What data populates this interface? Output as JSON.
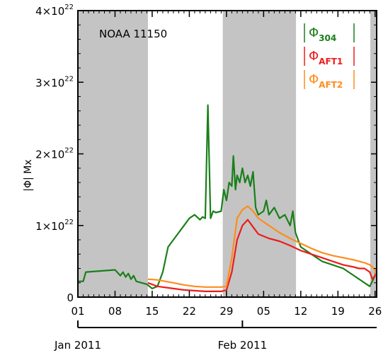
{
  "chart_data": {
    "type": "line",
    "annotation": "NOAA  11150",
    "ylabel": "|Φ| Mx",
    "x_unit": "days from 2011-01-01",
    "xlim": [
      0,
      56.3
    ],
    "ylim": [
      0,
      4e+22
    ],
    "y_ticks": [
      {
        "value": 0,
        "mantissa": "0",
        "exponent": ""
      },
      {
        "value": 1e+22,
        "mantissa": "1×10",
        "exponent": "22"
      },
      {
        "value": 2e+22,
        "mantissa": "2×10",
        "exponent": "22"
      },
      {
        "value": 3e+22,
        "mantissa": "3×10",
        "exponent": "22"
      },
      {
        "value": 4e+22,
        "mantissa": "4×10",
        "exponent": "22"
      }
    ],
    "x_ticks": [
      {
        "value": 0,
        "label": "01"
      },
      {
        "value": 7,
        "label": "08"
      },
      {
        "value": 14,
        "label": "15"
      },
      {
        "value": 21,
        "label": "22"
      },
      {
        "value": 28,
        "label": "29"
      },
      {
        "value": 35,
        "label": "05"
      },
      {
        "value": 42,
        "label": "12"
      },
      {
        "value": 49,
        "label": "19"
      },
      {
        "value": 56,
        "label": "26"
      }
    ],
    "month_labels": [
      {
        "value": 0,
        "label": "Jan 2011"
      },
      {
        "value": 31,
        "label": "Feb 2011"
      }
    ],
    "shaded_intervals": [
      [
        0,
        13.2
      ],
      [
        27.3,
        41.1
      ],
      [
        55.1,
        56.3
      ]
    ],
    "legend_position": "top-right",
    "series": [
      {
        "key": "phi304",
        "base": "Φ",
        "sub": "304",
        "color": "#1a7f1a",
        "points": [
          [
            0,
            2.2e+21
          ],
          [
            1,
            2.2e+21
          ],
          [
            1.5,
            3.5e+21
          ],
          [
            7,
            3.8e+21
          ],
          [
            8,
            3e+21
          ],
          [
            8.5,
            3.5e+21
          ],
          [
            9,
            2.8e+21
          ],
          [
            9.5,
            3.3e+21
          ],
          [
            10,
            2.5e+21
          ],
          [
            10.5,
            3e+21
          ],
          [
            11,
            2.2e+21
          ],
          [
            12,
            2e+21
          ],
          [
            13,
            1.8e+21
          ],
          [
            14,
            1.2e+21
          ],
          [
            15,
            1.5e+21
          ],
          [
            16,
            3.5e+21
          ],
          [
            17,
            7e+21
          ],
          [
            18,
            8e+21
          ],
          [
            19,
            9e+21
          ],
          [
            20,
            1e+22
          ],
          [
            21,
            1.1e+22
          ],
          [
            22,
            1.15e+22
          ],
          [
            23,
            1.08e+22
          ],
          [
            23.5,
            1.12e+22
          ],
          [
            24,
            1.1e+22
          ],
          [
            24.5,
            2.68e+22
          ],
          [
            25,
            1.1e+22
          ],
          [
            25.5,
            1.2e+22
          ],
          [
            26,
            1.18e+22
          ],
          [
            27,
            1.2e+22
          ],
          [
            27.5,
            1.5e+22
          ],
          [
            28,
            1.35e+22
          ],
          [
            28.5,
            1.6e+22
          ],
          [
            29,
            1.55e+22
          ],
          [
            29.3,
            1.97e+22
          ],
          [
            29.7,
            1.5e+22
          ],
          [
            30,
            1.7e+22
          ],
          [
            30.5,
            1.6e+22
          ],
          [
            31,
            1.8e+22
          ],
          [
            31.5,
            1.6e+22
          ],
          [
            32,
            1.7e+22
          ],
          [
            32.5,
            1.55e+22
          ],
          [
            33,
            1.75e+22
          ],
          [
            33.5,
            1.25e+22
          ],
          [
            34,
            1.15e+22
          ],
          [
            35,
            1.2e+22
          ],
          [
            35.5,
            1.35e+22
          ],
          [
            36,
            1.15e+22
          ],
          [
            37,
            1.25e+22
          ],
          [
            38,
            1.1e+22
          ],
          [
            39,
            1.15e+22
          ],
          [
            40,
            1e+22
          ],
          [
            40.5,
            1.2e+22
          ],
          [
            41,
            9e+21
          ],
          [
            42,
            7e+21
          ],
          [
            44,
            6e+21
          ],
          [
            46,
            5e+21
          ],
          [
            48,
            4.5e+21
          ],
          [
            50,
            4e+21
          ],
          [
            52,
            3e+21
          ],
          [
            53,
            2.5e+21
          ],
          [
            54,
            2e+21
          ],
          [
            55,
            1.5e+21
          ],
          [
            56,
            3e+21
          ],
          [
            56.3,
            4e+21
          ]
        ]
      },
      {
        "key": "phiaft1",
        "base": "Φ",
        "sub": "AFT1",
        "color": "#ee1c1c",
        "points": [
          [
            13.2,
            2e+21
          ],
          [
            15,
            1.5e+21
          ],
          [
            18,
            1.2e+21
          ],
          [
            20,
            1e+21
          ],
          [
            22,
            9e+20
          ],
          [
            24,
            8e+20
          ],
          [
            27,
            8e+20
          ],
          [
            28,
            1e+21
          ],
          [
            29,
            3.5e+21
          ],
          [
            30,
            8e+21
          ],
          [
            31,
            1e+22
          ],
          [
            32,
            1.08e+22
          ],
          [
            33,
            9.8e+21
          ],
          [
            34,
            8.8e+21
          ],
          [
            36,
            8.2e+21
          ],
          [
            38,
            7.8e+21
          ],
          [
            40,
            7.2e+21
          ],
          [
            42,
            6.5e+21
          ],
          [
            44,
            6e+21
          ],
          [
            46,
            5.5e+21
          ],
          [
            48,
            5e+21
          ],
          [
            50,
            4.5e+21
          ],
          [
            52,
            4.2e+21
          ],
          [
            53,
            4e+21
          ],
          [
            54,
            4e+21
          ],
          [
            55,
            3.5e+21
          ],
          [
            55.5,
            2.5e+21
          ],
          [
            56,
            3e+21
          ],
          [
            56.3,
            3.5e+21
          ]
        ]
      },
      {
        "key": "phiaft2",
        "base": "Φ",
        "sub": "AFT2",
        "color": "#ff8c1a",
        "points": [
          [
            13.2,
            2.5e+21
          ],
          [
            15,
            2.4e+21
          ],
          [
            18,
            2e+21
          ],
          [
            20,
            1.7e+21
          ],
          [
            22,
            1.5e+21
          ],
          [
            24,
            1.4e+21
          ],
          [
            27,
            1.4e+21
          ],
          [
            28,
            1.5e+21
          ],
          [
            29,
            5.5e+21
          ],
          [
            30,
            1.1e+22
          ],
          [
            31,
            1.22e+22
          ],
          [
            32,
            1.27e+22
          ],
          [
            33,
            1.2e+22
          ],
          [
            34,
            1.1e+22
          ],
          [
            36,
            1e+22
          ],
          [
            38,
            9e+21
          ],
          [
            40,
            8.2e+21
          ],
          [
            42,
            7.5e+21
          ],
          [
            44,
            6.8e+21
          ],
          [
            46,
            6.2e+21
          ],
          [
            48,
            5.8e+21
          ],
          [
            50,
            5.5e+21
          ],
          [
            52,
            5.2e+21
          ],
          [
            54,
            4.8e+21
          ],
          [
            55,
            4.5e+21
          ],
          [
            55.5,
            4.2e+21
          ],
          [
            56,
            3.8e+21
          ],
          [
            56.3,
            3e+21
          ]
        ]
      }
    ]
  }
}
